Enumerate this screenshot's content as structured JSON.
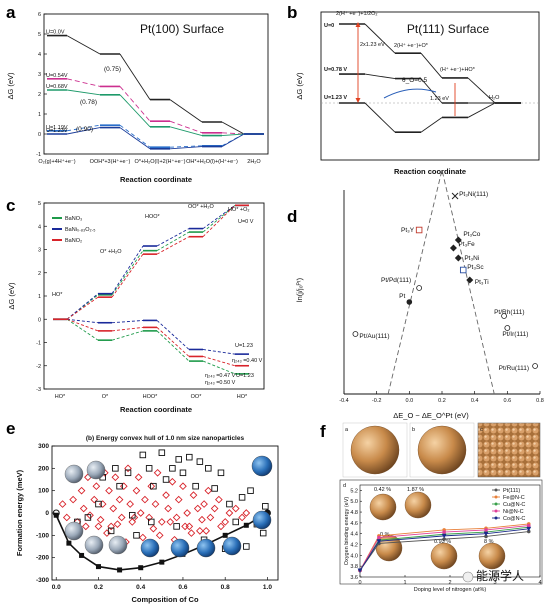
{
  "panel_letters": [
    "a",
    "b",
    "c",
    "d",
    "e",
    "f"
  ],
  "watermark": "能源学人",
  "chart_data": [
    {
      "id": "a",
      "type": "line",
      "title": "Pt(100) Surface",
      "ylabel": "ΔG (eV)",
      "xlabel": "Reaction coordinate",
      "ylim": [
        -1,
        6
      ],
      "yticks": [
        "-1",
        "0",
        "1",
        "2",
        "3",
        "4",
        "5",
        "6"
      ],
      "categories": [
        "O₂(g)+4H⁺+e⁻)",
        "OOH*+3(H⁺+e⁻)",
        "O*+H₂O(l)+2(H⁺+e⁻)",
        "OH*+H₂O(l)+(H⁺+e⁻)",
        "2H₂O"
      ],
      "series": [
        {
          "name": "U=0.0V",
          "color": "#222222",
          "dash": "",
          "values": [
            4.92,
            4.0,
            1.72,
            0.6,
            0
          ]
        },
        {
          "name": "U=0.54V",
          "color": "#cc2f8f",
          "dash": "5,3",
          "values": [
            2.76,
            2.38,
            0.64,
            0.06,
            0
          ]
        },
        {
          "name": "U=0.68V",
          "color": "#1e9a6a",
          "dash": "",
          "values": [
            2.2,
            1.96,
            0.36,
            -0.08,
            0
          ]
        },
        {
          "name": "U=1.19V",
          "color": "#2a6fcb",
          "dash": "4,3",
          "values": [
            0.16,
            0.44,
            -0.66,
            -0.59,
            0
          ]
        },
        {
          "name": "U=1.23V",
          "color": "#1a3c9a",
          "dash": "",
          "values": [
            0,
            0.32,
            -0.74,
            -0.63,
            0
          ]
        }
      ],
      "annotations": [
        "(0.75)",
        "(0.78)",
        "(0.90)"
      ]
    },
    {
      "id": "b",
      "type": "line",
      "title": "Pt(111) Surface",
      "ylabel": "ΔG (eV)",
      "xlabel": "Reaction coordinate",
      "state_labels": [
        "2(H⁺ +e⁻)+1/2O₂",
        "2(H⁺ +e⁻)+O*",
        "(H⁺ +e⁻)+HO*",
        "H₂O"
      ],
      "series": [
        {
          "name": "U=0",
          "color": "#222222",
          "values": [
            2.46,
            1.55,
            0.78,
            0
          ]
        },
        {
          "name": "U=0.78 V",
          "color": "#222222",
          "values": [
            0.9,
            0.76,
            0.0,
            0
          ]
        },
        {
          "name": "U=1.23 V",
          "color": "#222222",
          "values": [
            0,
            -0.91,
            -0.45,
            0
          ]
        }
      ],
      "annotations": [
        "2x1.23 eV",
        "1.23 eV",
        "θ_O=0.5"
      ]
    },
    {
      "id": "c",
      "type": "line",
      "ylabel": "ΔG (eV)",
      "xlabel": "Reaction coordinate",
      "ylim": [
        -3,
        5
      ],
      "yticks": [
        "-3",
        "-2",
        "-1",
        "0",
        "1",
        "2",
        "3",
        "4",
        "5"
      ],
      "categories": [
        "HO*",
        "O*",
        "HOO*",
        "OO*",
        "HO*"
      ],
      "legend": [
        "BaNO₃",
        "BaNi₀.₈₃O₂.₅",
        "BaNO₂"
      ],
      "state_labels": [
        "HO*",
        "O* +H₂O",
        "HOO*",
        "OO* +H₂O",
        "HO* +O₂"
      ],
      "upper_label": "U=0 V",
      "series": [
        {
          "name": "BaNO₃",
          "color": "#1e9a4a",
          "values": [
            0,
            1.05,
            2.95,
            3.75,
            4.9
          ]
        },
        {
          "name": "BaNi₀.₈₃O₂.₅",
          "color": "#1a2a9a",
          "values": [
            0,
            1.1,
            3.15,
            3.9,
            4.9
          ]
        },
        {
          "name": "BaNO₂",
          "color": "#d8232a",
          "values": [
            0,
            0.95,
            2.8,
            3.55,
            4.9
          ]
        },
        {
          "name": "BaNO₃ (U)",
          "color": "#1e9a4a",
          "values": [
            0,
            -0.9,
            -0.5,
            -1.8,
            -2.35
          ]
        },
        {
          "name": "BaNi₀.₈₃O₂.₅ (U)",
          "color": "#1a2a9a",
          "values": [
            0,
            -0.15,
            -0.05,
            -1.3,
            -1.5
          ]
        },
        {
          "name": "BaNO₂ (U)",
          "color": "#d8232a",
          "values": [
            0,
            -0.5,
            -0.35,
            -1.6,
            -2.0
          ]
        }
      ],
      "annotations": [
        "U=1.23",
        "η₂₄₃ =0.40 V",
        "η₂₄₃ =0.47 V",
        "η₂₄₃ =0.50 V",
        "U=1.23"
      ]
    },
    {
      "id": "d",
      "type": "scatter",
      "ylabel": "ln(j/j₀ᴾᵗ)",
      "xlabel": "ΔE_O − ΔE_O^Pt (eV)",
      "xlim": [
        -0.4,
        0.8
      ],
      "xticks": [
        "-0.4",
        "-0.2",
        "0.0",
        "0.2",
        "0.4",
        "0.6",
        "0.8"
      ],
      "points": [
        {
          "label": "Pt/Au(111)",
          "x": -0.33,
          "y": -0.8,
          "marker": "open-circle",
          "color": "#222222"
        },
        {
          "label": "Pt/Pd(111)",
          "x": 0.06,
          "y": 0.35,
          "marker": "open-circle",
          "color": "#222222"
        },
        {
          "label": "Pt",
          "x": 0.0,
          "y": 0.0,
          "marker": "filled-circle",
          "color": "#222222"
        },
        {
          "label": "Pt₃Y",
          "x": 0.06,
          "y": 1.8,
          "marker": "open-square",
          "color": "#c0392b"
        },
        {
          "label": "Pt₃Ni(111)",
          "x": 0.28,
          "y": 2.65,
          "marker": "cross",
          "color": "#222222"
        },
        {
          "label": "Pt₃Co",
          "x": 0.3,
          "y": 1.55,
          "marker": "filled-diamond",
          "color": "#222222"
        },
        {
          "label": "Pt₃Fe",
          "x": 0.27,
          "y": 1.35,
          "marker": "filled-diamond",
          "color": "#222222"
        },
        {
          "label": "Pt₃Ni",
          "x": 0.3,
          "y": 1.1,
          "marker": "filled-diamond",
          "color": "#222222"
        },
        {
          "label": "Pt₃Sc",
          "x": 0.33,
          "y": 0.8,
          "marker": "open-square",
          "color": "#2a4fa0"
        },
        {
          "label": "Pt₃Ti",
          "x": 0.37,
          "y": 0.55,
          "marker": "filled-diamond",
          "color": "#222222"
        },
        {
          "label": "Pt/Rh(111)",
          "x": 0.58,
          "y": -0.35,
          "marker": "open-circle",
          "color": "#222222"
        },
        {
          "label": "Pt/Ir(111)",
          "x": 0.6,
          "y": -0.65,
          "marker": "open-circle",
          "color": "#222222"
        },
        {
          "label": "Pt/Ru(111)",
          "x": 0.77,
          "y": -1.6,
          "marker": "open-circle",
          "color": "#222222"
        }
      ]
    },
    {
      "id": "e",
      "type": "scatter",
      "title": "(b) Energy convex hull of 1.0 nm size nanoparticles",
      "xlabel": "Composition of Co",
      "ylabel": "Formation energy (meV)",
      "xlim": [
        -0.02,
        1.05
      ],
      "ylim": [
        -300,
        300
      ],
      "xticks": [
        "0.0",
        "0.2",
        "0.4",
        "0.6",
        "0.8",
        "1.0"
      ],
      "yticks": [
        "-300",
        "-200",
        "-100",
        "0",
        "100",
        "200",
        "300"
      ],
      "hull": {
        "x": [
          0.0,
          0.06,
          0.12,
          0.2,
          0.3,
          0.4,
          0.5,
          0.6,
          0.7,
          0.8,
          0.9,
          1.0
        ],
        "y": [
          -10,
          -135,
          -190,
          -240,
          -255,
          -245,
          -220,
          -185,
          -145,
          -100,
          -55,
          0
        ]
      },
      "diamonds": {
        "x": [
          0.03,
          0.05,
          0.08,
          0.1,
          0.12,
          0.13,
          0.15,
          0.16,
          0.18,
          0.19,
          0.21,
          0.22,
          0.23,
          0.25,
          0.26,
          0.27,
          0.28,
          0.3,
          0.31,
          0.32,
          0.34,
          0.35,
          0.36,
          0.38,
          0.39,
          0.4,
          0.42,
          0.44,
          0.45,
          0.47,
          0.48,
          0.5,
          0.52,
          0.53,
          0.55,
          0.57,
          0.58,
          0.6,
          0.62,
          0.63,
          0.65,
          0.67,
          0.68,
          0.7,
          0.72,
          0.73,
          0.75,
          0.77,
          0.8,
          0.82,
          0.85,
          0.88,
          0.9,
          0.17,
          0.24,
          0.33,
          0.41,
          0.49,
          0.56,
          0.64,
          0.71,
          0.78,
          0.2,
          0.29,
          0.37,
          0.46,
          0.54,
          0.61,
          0.69,
          0.09,
          0.14
        ],
        "y": [
          40,
          -20,
          60,
          -40,
          100,
          20,
          160,
          -10,
          60,
          120,
          -30,
          40,
          180,
          100,
          -60,
          20,
          160,
          60,
          -20,
          120,
          200,
          40,
          -40,
          100,
          160,
          0,
          60,
          -20,
          120,
          40,
          180,
          -40,
          80,
          20,
          140,
          -20,
          60,
          120,
          0,
          -60,
          80,
          20,
          -80,
          40,
          100,
          -20,
          20,
          60,
          -40,
          0,
          20,
          -20,
          0,
          -120,
          -90,
          -130,
          -110,
          -100,
          -120,
          -90,
          -80,
          -60,
          -60,
          -50,
          -20,
          -70,
          -40,
          -60,
          -30,
          -80,
          -60
        ]
      },
      "squares": {
        "x": [
          0.1,
          0.2,
          0.22,
          0.28,
          0.3,
          0.34,
          0.38,
          0.41,
          0.44,
          0.46,
          0.5,
          0.52,
          0.55,
          0.58,
          0.6,
          0.63,
          0.66,
          0.68,
          0.72,
          0.75,
          0.78,
          0.82,
          0.88,
          0.92,
          0.95,
          0.98,
          0.99,
          0.85,
          0.7,
          0.45,
          0.36,
          0.26,
          0.15,
          0.57,
          0.8,
          0.9
        ],
        "y": [
          -40,
          40,
          160,
          200,
          120,
          180,
          -100,
          260,
          200,
          120,
          270,
          150,
          200,
          240,
          180,
          250,
          120,
          230,
          200,
          110,
          180,
          40,
          70,
          100,
          -50,
          -90,
          30,
          -40,
          -120,
          -40,
          -10,
          -80,
          -20,
          -60,
          -160,
          -150
        ]
      },
      "circles": {
        "x": [
          0.0,
          1.0
        ],
        "y": [
          0,
          0
        ]
      }
    },
    {
      "id": "f",
      "type": "line",
      "xlabel": "Doping level of nitrogen (at%)",
      "ylabel": "Oxygen binding energy (eV)",
      "xlim": [
        0,
        4
      ],
      "ylim": [
        3.6,
        5.3
      ],
      "xticks": [
        "0",
        "1",
        "2",
        "3",
        "4"
      ],
      "yticks": [
        "3.6",
        "3.8",
        "4.0",
        "4.2",
        "4.4",
        "4.6",
        "4.8",
        "5.0",
        "5.2"
      ],
      "sub_labels": [
        "a",
        "b",
        "c",
        "d"
      ],
      "state_labels": [
        "0.42 %",
        "1.87 %",
        "0 %",
        "0.93 %",
        "8 %"
      ],
      "series": [
        {
          "name": "Pt(111)",
          "color": "#555555",
          "marker": "circle",
          "x": [
            0,
            0.42,
            1.87,
            2.8,
            3.75
          ],
          "y": [
            3.72,
            4.22,
            4.3,
            4.35,
            4.44
          ]
        },
        {
          "name": "Fe@N-C",
          "color": "#e8803a",
          "marker": "circle",
          "x": [
            0,
            0.42,
            1.87,
            2.8,
            3.75
          ],
          "y": [
            3.72,
            4.36,
            4.47,
            4.5,
            4.58
          ]
        },
        {
          "name": "Cu@N-C",
          "color": "#3aa04a",
          "marker": "circle",
          "x": [
            0,
            0.42,
            1.87,
            2.8,
            3.75
          ],
          "y": [
            3.72,
            4.28,
            4.39,
            4.43,
            4.52
          ]
        },
        {
          "name": "Ni@N-C",
          "color": "#e0409a",
          "marker": "circle",
          "x": [
            0,
            0.42,
            1.87,
            2.8,
            3.75
          ],
          "y": [
            3.72,
            4.33,
            4.43,
            4.47,
            4.55
          ]
        },
        {
          "name": "Co@N-C",
          "color": "#1a2a8a",
          "marker": "triangle",
          "x": [
            0,
            0.42,
            1.87,
            2.8,
            3.75
          ],
          "y": [
            3.72,
            4.26,
            4.36,
            4.4,
            4.49
          ]
        }
      ]
    }
  ]
}
